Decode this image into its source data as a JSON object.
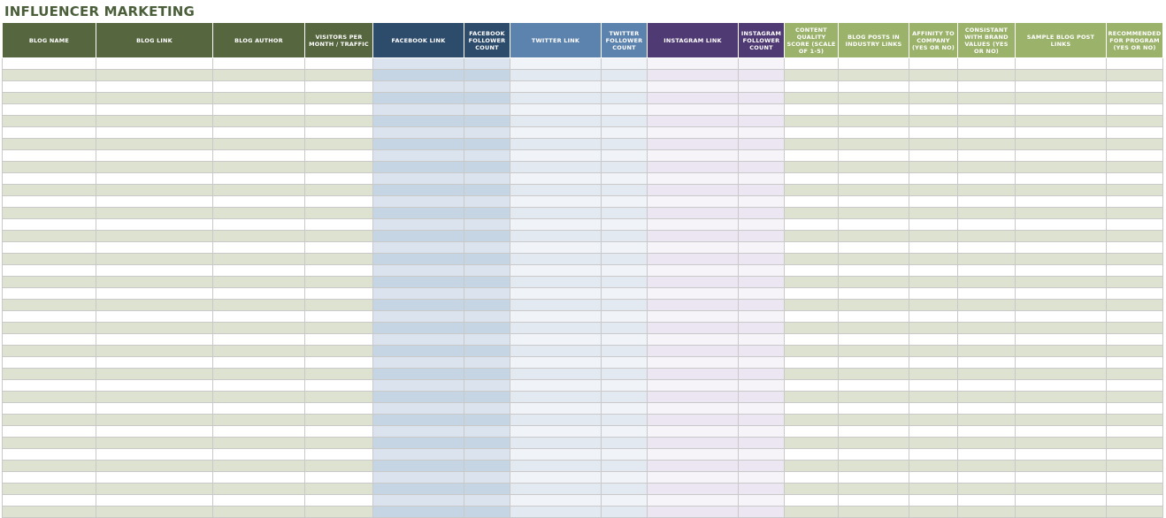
{
  "title": "INFLUENCER MARKETING",
  "columns": [
    {
      "label": "BLOG NAME",
      "header_color": "#56663f",
      "odd_color": "#ffffff",
      "even_color": "#dde3d0"
    },
    {
      "label": "BLOG LINK",
      "header_color": "#56663f",
      "odd_color": "#ffffff",
      "even_color": "#dde3d0"
    },
    {
      "label": "BLOG AUTHOR",
      "header_color": "#56663f",
      "odd_color": "#ffffff",
      "even_color": "#dde3d0"
    },
    {
      "label": "VISITORS PER MONTH / TRAFFIC",
      "header_color": "#56663f",
      "odd_color": "#ffffff",
      "even_color": "#dde3d0"
    },
    {
      "label": "FACEBOOK LINK",
      "header_color": "#2d4b6b",
      "odd_color": "#dbe4ee",
      "even_color": "#c6d5e3"
    },
    {
      "label": "FACEBOOK FOLLOWER COUNT",
      "header_color": "#2d4b6b",
      "odd_color": "#dbe4ee",
      "even_color": "#c6d5e3"
    },
    {
      "label": "TWITTER LINK",
      "header_color": "#5c82ae",
      "odd_color": "#f0f3f8",
      "even_color": "#e3e9f1"
    },
    {
      "label": "TWITTER FOLLOWER COUNT",
      "header_color": "#5c82ae",
      "odd_color": "#f0f3f8",
      "even_color": "#e3e9f1"
    },
    {
      "label": "INSTAGRAM LINK",
      "header_color": "#4f3a73",
      "odd_color": "#f6f3f9",
      "even_color": "#ece6f3"
    },
    {
      "label": "INSTAGRAM FOLLOWER COUNT",
      "header_color": "#4f3a73",
      "odd_color": "#f6f3f9",
      "even_color": "#ece6f3"
    },
    {
      "label": "CONTENT QUALITY SCORE (SCALE OF 1-5)",
      "header_color": "#9bb26a",
      "odd_color": "#ffffff",
      "even_color": "#dde3d0"
    },
    {
      "label": "BLOG POSTS IN INDUSTRY LINKS",
      "header_color": "#9bb26a",
      "odd_color": "#ffffff",
      "even_color": "#dde3d0"
    },
    {
      "label": "AFFINITY TO COMPANY (YES OR NO)",
      "header_color": "#9bb26a",
      "odd_color": "#ffffff",
      "even_color": "#dde3d0"
    },
    {
      "label": "CONSISTANT WITH BRAND VALUES (YES OR NO)",
      "header_color": "#9bb26a",
      "odd_color": "#ffffff",
      "even_color": "#dde3d0"
    },
    {
      "label": "SAMPLE BLOG POST LINKS",
      "header_color": "#9bb26a",
      "odd_color": "#ffffff",
      "even_color": "#dde3d0"
    },
    {
      "label": "RECOMMENDED FOR PROGRAM (YES OR NO)",
      "header_color": "#9bb26a",
      "odd_color": "#ffffff",
      "even_color": "#dde3d0"
    }
  ],
  "row_count": 40
}
